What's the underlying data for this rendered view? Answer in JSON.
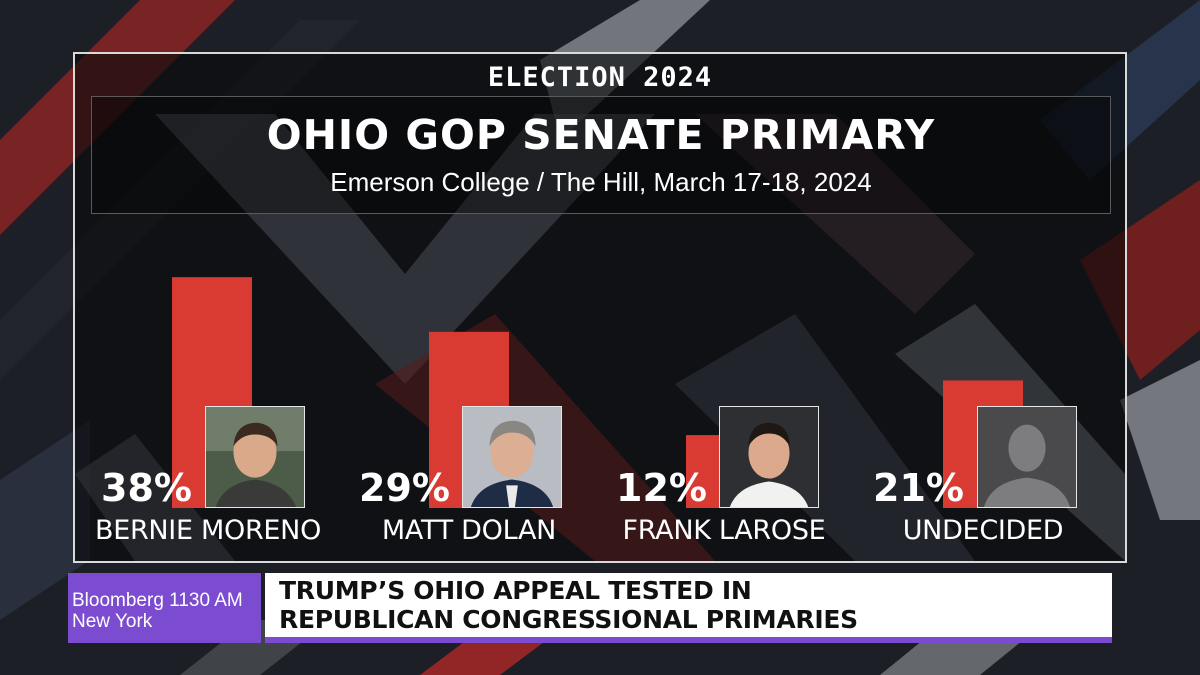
{
  "kicker": "ELECTION 2024",
  "colors": {
    "bar": "#d93a32",
    "brand": "#7b4ccf",
    "panel_border": "#d9d9d9",
    "text": "#ffffff"
  },
  "chart_data": {
    "type": "bar",
    "title": "OHIO GOP SENATE PRIMARY",
    "subtitle": "Emerson College /  The Hill, March 17-18, 2024",
    "xlabel": "",
    "ylabel": "",
    "categories": [
      "BERNIE MORENO",
      "MATT DOLAN",
      "FRANK LAROSE",
      "UNDECIDED"
    ],
    "values": [
      38,
      29,
      12,
      21
    ],
    "value_labels": [
      "38%",
      "29%",
      "12%",
      "21%"
    ],
    "ylim": [
      0,
      40
    ],
    "grid": false,
    "legend": "none",
    "annotations": [
      "candidate-portrait",
      "candidate-portrait",
      "candidate-portrait",
      "silhouette-placeholder"
    ]
  },
  "lower_third": {
    "brand_line1": "Bloomberg 1130 AM",
    "brand_line2": "New York",
    "headline_line1": "TRUMP’S OHIO APPEAL TESTED IN",
    "headline_line2": "REPUBLICAN CONGRESSIONAL PRIMARIES"
  }
}
